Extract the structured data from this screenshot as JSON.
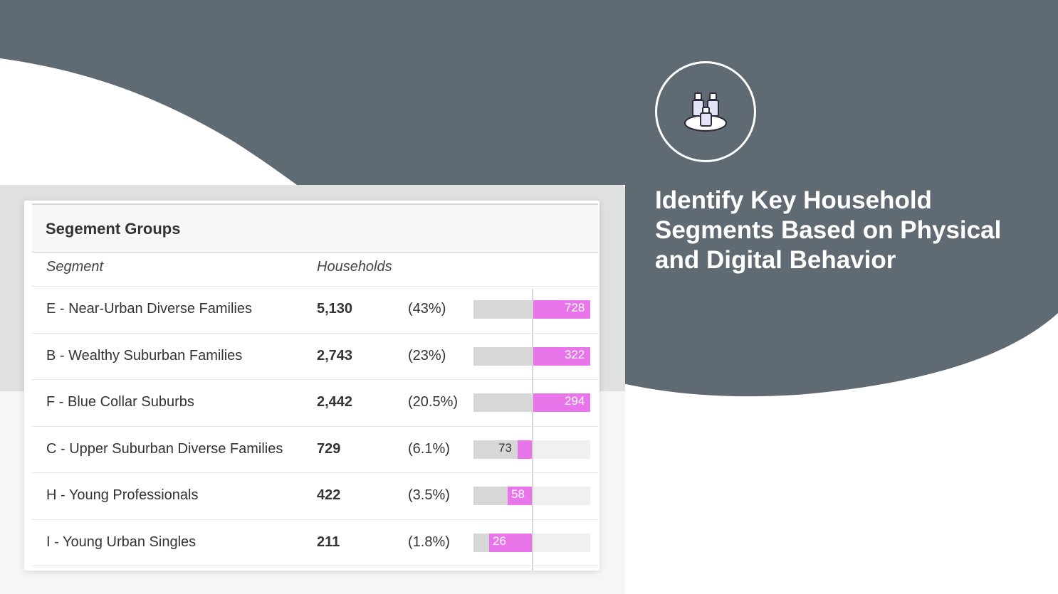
{
  "colors": {
    "slate": "#5f6a72",
    "bar_pink": "#e876ea",
    "bar_gray": "#d7d7d7",
    "track": "#f0f0f0"
  },
  "icon": "family-group-icon",
  "headline": {
    "line1": "Identify Key Household",
    "line2": "Segments Based on Physical",
    "line3": "and Digital Behavior"
  },
  "table": {
    "title": "Segement Groups",
    "col_segment": "Segment",
    "col_households": "Households",
    "rows": [
      {
        "segment": "E - Near-Urban Diverse Families",
        "households": "5,130",
        "pct": "(43%)",
        "index": "728"
      },
      {
        "segment": "B - Wealthy Suburban Families",
        "households": "2,743",
        "pct": "(23%)",
        "index": "322"
      },
      {
        "segment": "F - Blue Collar Suburbs",
        "households": "2,442",
        "pct": "(20.5%)",
        "index": "294"
      },
      {
        "segment": "C - Upper Suburban Diverse Families",
        "households": "729",
        "pct": "(6.1%)",
        "index": "73"
      },
      {
        "segment": "H - Young Professionals",
        "households": "422",
        "pct": "(3.5%)",
        "index": "58"
      },
      {
        "segment": "I - Young Urban Singles",
        "households": "211",
        "pct": "(1.8%)",
        "index": "26"
      }
    ]
  }
}
